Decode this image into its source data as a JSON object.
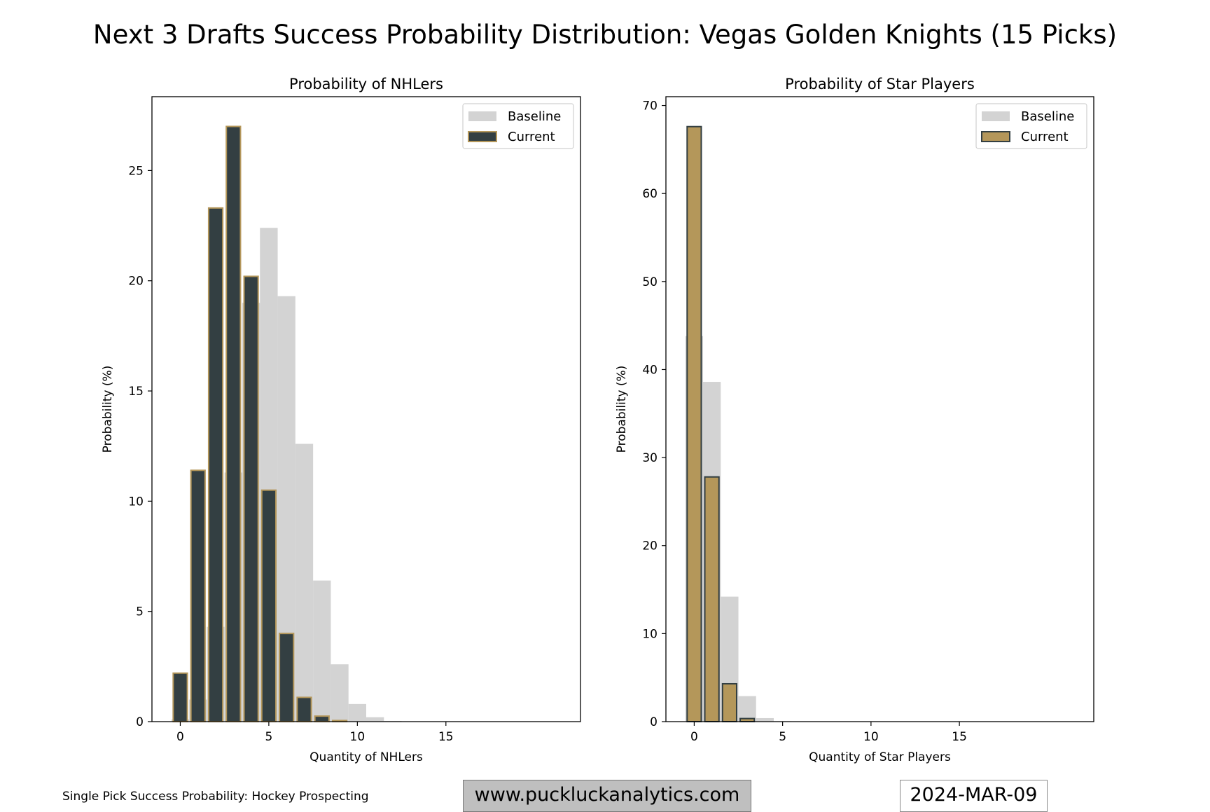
{
  "title": "Next 3 Drafts Success Probability Distribution: Vegas Golden Knights (15 Picks)",
  "colors": {
    "gold": "#b4975a",
    "dark": "#333f42",
    "baseline": "#d3d3d3"
  },
  "chart_data": [
    {
      "type": "bar",
      "title": "Probability of NHLers",
      "xlabel": "Quantity of NHLers",
      "ylabel": "Probability (%)",
      "xlim": [
        -1.6,
        22.6
      ],
      "ylim": [
        0,
        28.35
      ],
      "xticks": [
        0,
        5,
        10,
        15
      ],
      "yticks": [
        0,
        5,
        10,
        15,
        20,
        25
      ],
      "legend": {
        "position": "top-right",
        "entries": [
          "Baseline",
          "Current"
        ]
      },
      "series": [
        {
          "name": "Baseline",
          "x": [
            0,
            1,
            2,
            3,
            4,
            5,
            6,
            7,
            8,
            9,
            10,
            11,
            12
          ],
          "values": [
            0.1,
            1.0,
            4.3,
            11.3,
            19.0,
            22.4,
            19.3,
            12.6,
            6.4,
            2.6,
            0.8,
            0.2,
            0.03
          ]
        },
        {
          "name": "Current",
          "x": [
            0,
            1,
            2,
            3,
            4,
            5,
            6,
            7,
            8,
            9
          ],
          "values": [
            2.2,
            11.4,
            23.3,
            27.0,
            20.2,
            10.5,
            4.0,
            1.1,
            0.25,
            0.05
          ]
        }
      ]
    },
    {
      "type": "bar",
      "title": "Probability of Star Players",
      "xlabel": "Quantity of Star Players",
      "ylabel": "Probability (%)",
      "xlim": [
        -1.6,
        22.6
      ],
      "ylim": [
        0,
        71
      ],
      "xticks": [
        0,
        5,
        10,
        15
      ],
      "yticks": [
        0,
        10,
        20,
        30,
        40,
        50,
        60,
        70
      ],
      "legend": {
        "position": "top-right",
        "entries": [
          "Baseline",
          "Current"
        ]
      },
      "series": [
        {
          "name": "Baseline",
          "x": [
            0,
            1,
            2,
            3,
            4,
            5
          ],
          "values": [
            43.8,
            38.6,
            14.2,
            2.9,
            0.4,
            0.05
          ]
        },
        {
          "name": "Current",
          "x": [
            0,
            1,
            2,
            3
          ],
          "values": [
            67.6,
            27.8,
            4.3,
            0.35
          ]
        }
      ]
    }
  ],
  "footer": {
    "source": "Single Pick Success Probability: Hockey Prospecting",
    "website": "www.puckluckanalytics.com",
    "date": "2024-MAR-09"
  }
}
